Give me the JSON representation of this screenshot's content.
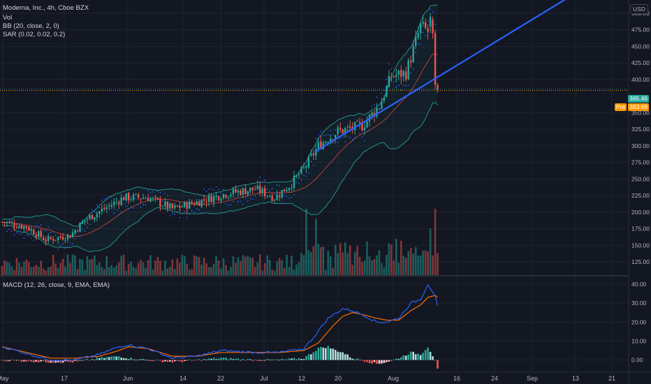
{
  "legend": {
    "title": "Moderna, Inc., 4h, Cboe BZX",
    "volume": "Vol",
    "bb": "BB (20, close, 2, 0)",
    "sar": "SAR (0.02, 0.02, 0.2)",
    "macd": "MACD (12, 26, close, 9, EMA, EMA)"
  },
  "price_axis": {
    "currency": "USD",
    "ticks": [
      "500.00",
      "475.00",
      "450.00",
      "425.00",
      "400.00",
      "350.00",
      "325.00",
      "300.00",
      "275.00",
      "250.00",
      "225.00",
      "200.00",
      "175.00",
      "150.00",
      "125.00"
    ],
    "last_price": "385.46",
    "pre_label": "Pre",
    "pre_price": "383.68"
  },
  "macd_axis": {
    "ticks": [
      "40.00",
      "30.00",
      "20.00",
      "10.00",
      "0.00"
    ]
  },
  "time_axis": {
    "labels": [
      "May",
      "17",
      "Jun",
      "14",
      "22",
      "Jul",
      "12",
      "20",
      "Aug",
      "16",
      "24",
      "Sep",
      "13",
      "21"
    ]
  },
  "colors": {
    "background": "#131722",
    "up": "#26a69a",
    "down": "#ef5350",
    "trendline": "#2962ff",
    "macd": "#2962ff",
    "signal": "#ff6d00",
    "bb_basis": "#e0433f",
    "bb_band": "#26a69a",
    "sar": "#2962ff",
    "pre_tag": "#ff9800"
  },
  "chart_data": {
    "type": "candlestick",
    "symbol": "Moderna, Inc.",
    "interval": "4h",
    "exchange": "Cboe BZX",
    "price_range": [
      105,
      520
    ],
    "anchors_price": [
      [
        0,
        185
      ],
      [
        10,
        178
      ],
      [
        18,
        158
      ],
      [
        28,
        165
      ],
      [
        34,
        188
      ],
      [
        42,
        205
      ],
      [
        50,
        222
      ],
      [
        60,
        222
      ],
      [
        70,
        205
      ],
      [
        80,
        215
      ],
      [
        92,
        228
      ],
      [
        104,
        235
      ],
      [
        112,
        222
      ],
      [
        118,
        240
      ],
      [
        124,
        265
      ],
      [
        130,
        300
      ],
      [
        138,
        322
      ],
      [
        148,
        330
      ],
      [
        155,
        360
      ],
      [
        160,
        405
      ],
      [
        166,
        410
      ],
      [
        172,
        480
      ],
      [
        176,
        470
      ],
      [
        179,
        383
      ]
    ],
    "trendline": {
      "start": [
        129,
        292
      ],
      "end": [
        240,
        540
      ]
    },
    "macd_range": [
      -6,
      44
    ],
    "anchors_macd": [
      [
        0,
        7
      ],
      [
        20,
        0
      ],
      [
        30,
        0
      ],
      [
        40,
        3
      ],
      [
        48,
        7
      ],
      [
        52,
        8
      ],
      [
        60,
        6
      ],
      [
        70,
        1
      ],
      [
        80,
        2
      ],
      [
        90,
        5
      ],
      [
        104,
        4
      ],
      [
        114,
        4
      ],
      [
        124,
        6
      ],
      [
        128,
        12
      ],
      [
        134,
        22
      ],
      [
        140,
        27
      ],
      [
        144,
        26
      ],
      [
        148,
        24
      ],
      [
        154,
        20
      ],
      [
        158,
        20
      ],
      [
        163,
        22
      ],
      [
        168,
        30
      ],
      [
        172,
        32
      ],
      [
        175,
        40
      ],
      [
        178,
        34
      ],
      [
        179,
        28
      ]
    ],
    "anchors_signal": [
      [
        0,
        7
      ],
      [
        20,
        1
      ],
      [
        30,
        1
      ],
      [
        40,
        2
      ],
      [
        48,
        5
      ],
      [
        52,
        7
      ],
      [
        60,
        6
      ],
      [
        70,
        2
      ],
      [
        80,
        2
      ],
      [
        90,
        4
      ],
      [
        104,
        4
      ],
      [
        114,
        4
      ],
      [
        124,
        5
      ],
      [
        130,
        9
      ],
      [
        136,
        18
      ],
      [
        140,
        23
      ],
      [
        144,
        25
      ],
      [
        148,
        24
      ],
      [
        154,
        22
      ],
      [
        158,
        21
      ],
      [
        163,
        21
      ],
      [
        168,
        26
      ],
      [
        172,
        29
      ],
      [
        175,
        33
      ],
      [
        178,
        34
      ],
      [
        179,
        33
      ]
    ],
    "volume_emphasis": [
      {
        "index": 125,
        "height": 1.0
      },
      {
        "index": 129,
        "height": 0.85
      },
      {
        "index": 178,
        "height": 1.0
      },
      {
        "index": 176,
        "height": 0.7
      }
    ]
  }
}
